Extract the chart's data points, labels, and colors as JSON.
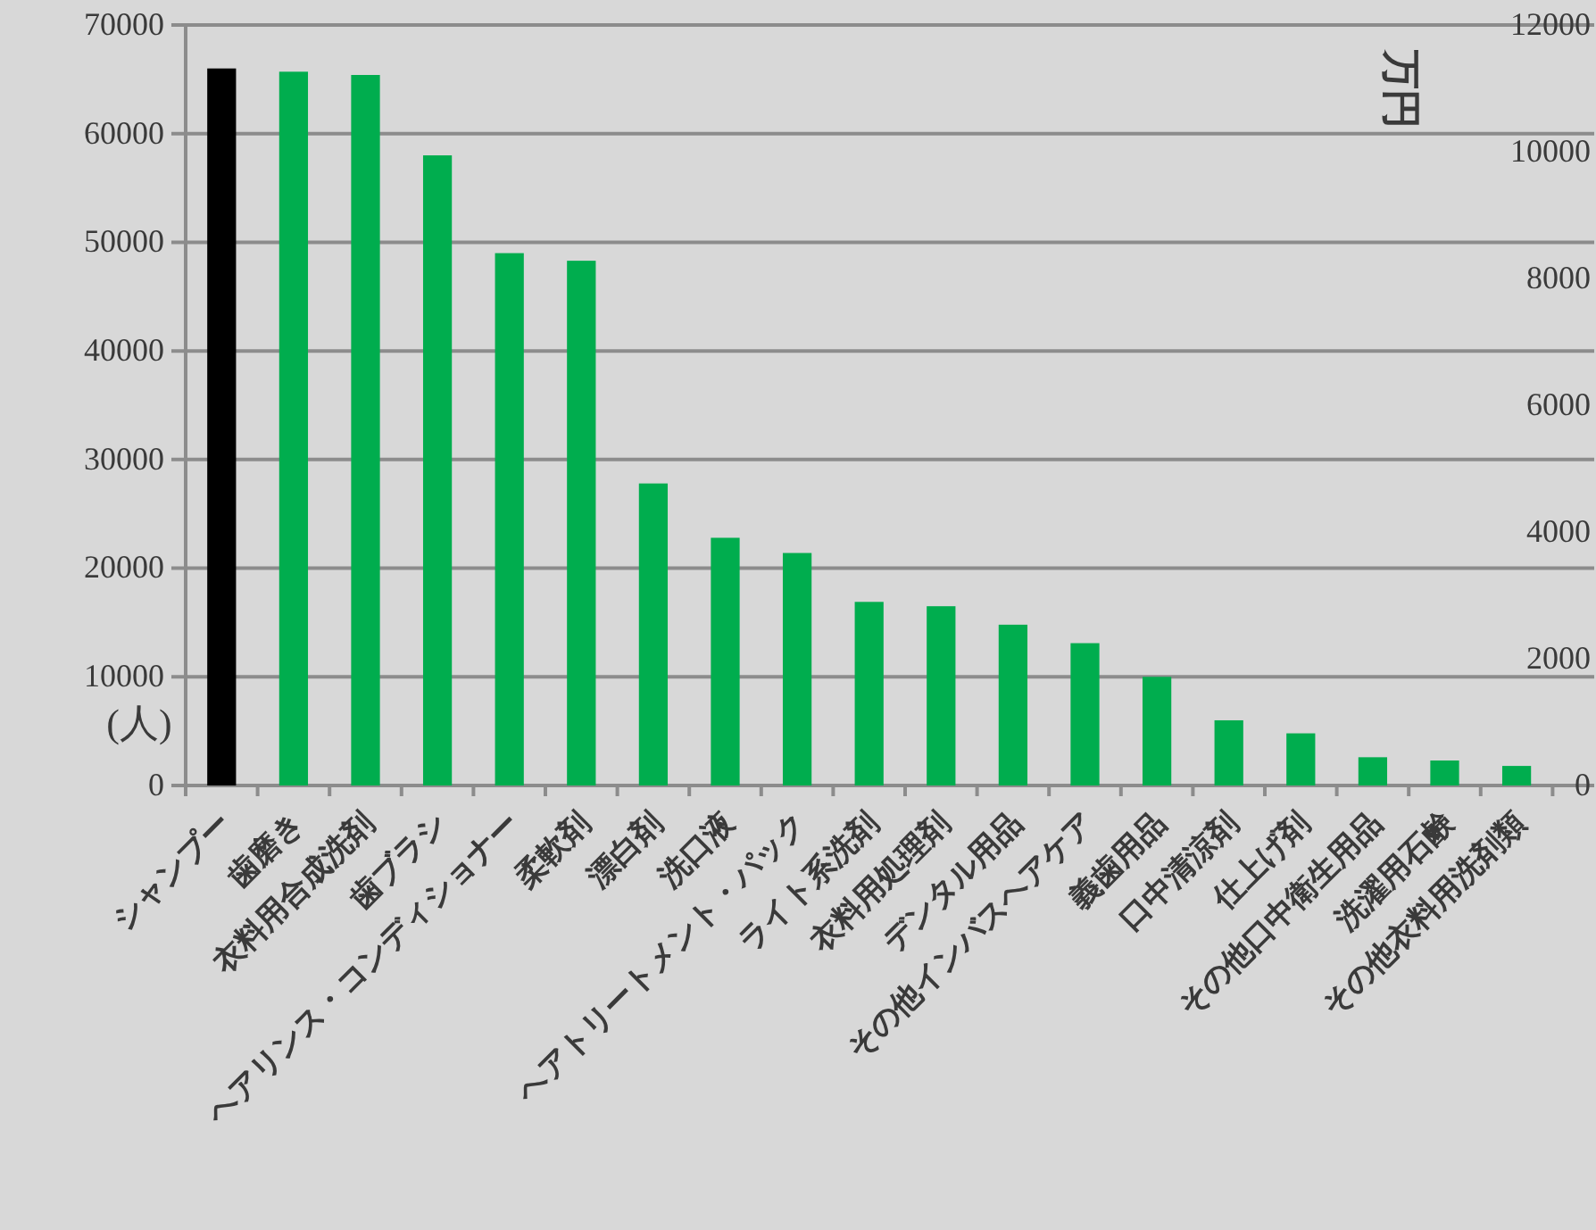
{
  "chart_data": {
    "type": "bar",
    "ylabel": "(人)",
    "y2label": "万円",
    "categories": [
      "シャンプー",
      "歯磨き",
      "衣料用合成洗剤",
      "歯ブラシ",
      "ヘアリンス・コンディショナー",
      "柔軟剤",
      "漂白剤",
      "洗口液",
      "ヘアトリートメント・パック",
      "ライト系洗剤",
      "衣料用処理剤",
      "デンタル用品",
      "その他インバスヘアケア",
      "義歯用品",
      "口中清涼剤",
      "仕上げ剤",
      "その他口中衛生用品",
      "洗濯用石鹸",
      "その他衣料用洗剤類"
    ],
    "values": [
      66000,
      65700,
      65400,
      58000,
      49000,
      48300,
      27800,
      22800,
      21400,
      16900,
      16500,
      14800,
      13100,
      10000,
      6000,
      4800,
      2600,
      2300,
      1800
    ],
    "colors": [
      "#000000",
      "#00ad4e",
      "#00ad4e",
      "#00ad4e",
      "#00ad4e",
      "#00ad4e",
      "#00ad4e",
      "#00ad4e",
      "#00ad4e",
      "#00ad4e",
      "#00ad4e",
      "#00ad4e",
      "#00ad4e",
      "#00ad4e",
      "#00ad4e",
      "#00ad4e",
      "#00ad4e",
      "#00ad4e",
      "#00ad4e"
    ],
    "ylim": [
      0,
      70000
    ],
    "yticks": [
      0,
      10000,
      20000,
      30000,
      40000,
      50000,
      60000,
      70000
    ],
    "y2lim": [
      0,
      12000
    ],
    "y2ticks": [
      0,
      2000,
      4000,
      6000,
      8000,
      10000,
      12000
    ],
    "grid": "y"
  }
}
